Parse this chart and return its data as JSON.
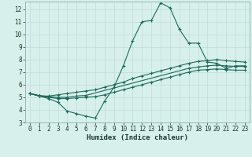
{
  "xlabel": "Humidex (Indice chaleur)",
  "xlim": [
    -0.5,
    23.5
  ],
  "ylim": [
    3,
    12.6
  ],
  "xticks": [
    0,
    1,
    2,
    3,
    4,
    5,
    6,
    7,
    8,
    9,
    10,
    11,
    12,
    13,
    14,
    15,
    16,
    17,
    18,
    19,
    20,
    21,
    22,
    23
  ],
  "yticks": [
    3,
    4,
    5,
    6,
    7,
    8,
    9,
    10,
    11,
    12
  ],
  "bg_color": "#d8f0ec",
  "grid_color": "#c0ddd8",
  "line_color": "#1a6b5a",
  "line1_x": [
    0,
    1,
    2,
    3,
    4,
    5,
    6,
    7,
    8,
    9,
    10,
    11,
    12,
    13,
    14,
    15,
    16,
    17,
    18,
    19,
    20,
    21,
    22,
    23
  ],
  "line1_y": [
    5.3,
    5.1,
    4.9,
    4.6,
    3.9,
    3.7,
    3.5,
    3.35,
    4.7,
    5.8,
    7.5,
    9.5,
    11.0,
    11.1,
    12.5,
    12.1,
    10.4,
    9.3,
    9.3,
    7.8,
    7.7,
    7.3,
    7.5,
    7.5
  ],
  "line2_x": [
    0,
    1,
    2,
    3,
    4,
    5,
    6,
    7,
    8,
    9,
    10,
    11,
    12,
    13,
    14,
    15,
    16,
    17,
    18,
    19,
    20,
    21,
    22,
    23
  ],
  "line2_y": [
    5.3,
    5.1,
    5.1,
    5.2,
    5.3,
    5.4,
    5.5,
    5.6,
    5.8,
    6.0,
    6.2,
    6.5,
    6.7,
    6.9,
    7.1,
    7.3,
    7.5,
    7.7,
    7.85,
    7.9,
    8.0,
    7.9,
    7.85,
    7.8
  ],
  "line3_x": [
    0,
    1,
    2,
    3,
    4,
    5,
    6,
    17,
    18,
    19,
    20,
    21,
    22,
    23
  ],
  "line3_y": [
    5.3,
    5.15,
    5.05,
    5.0,
    5.0,
    5.1,
    5.15,
    7.3,
    7.4,
    7.5,
    7.55,
    7.5,
    7.45,
    7.45
  ],
  "line4_x": [
    0,
    1,
    2,
    3,
    4,
    5,
    6,
    7,
    8,
    9,
    10,
    11,
    12,
    13,
    14,
    15,
    16,
    17,
    18,
    19,
    20,
    21,
    22,
    23
  ],
  "line4_y": [
    5.3,
    5.1,
    5.0,
    4.9,
    4.9,
    4.95,
    5.0,
    5.05,
    5.2,
    5.4,
    5.6,
    5.8,
    6.0,
    6.2,
    6.4,
    6.6,
    6.8,
    7.0,
    7.15,
    7.2,
    7.25,
    7.2,
    7.15,
    7.15
  ],
  "tick_fontsize": 5.5,
  "xlabel_fontsize": 6.5
}
